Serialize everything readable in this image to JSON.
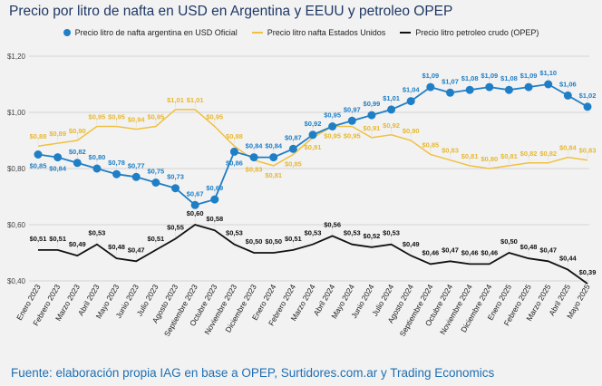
{
  "chart_data": {
    "type": "line",
    "title": "Precio por litro de nafta en USD en Argentina y EEUU y petroleo OPEP",
    "xlabel": "",
    "ylabel": "",
    "ylim": [
      0.4,
      1.2
    ],
    "yticks": [
      "$0,40",
      "$0,60",
      "$0,80",
      "$1,00",
      "$1,20"
    ],
    "grid": true,
    "legend_position": "top",
    "categories": [
      "Enero 2023",
      "Febrero 2023",
      "Marzo 2023",
      "Abril 2023",
      "Mayo 2023",
      "Junio 2023",
      "Julio 2023",
      "Agosto 2023",
      "Septiembre 2023",
      "Octubre 2023",
      "Noviembre 2023",
      "Diciembre 2023",
      "Enero 2024",
      "Febrero 2024",
      "Marzo 2024",
      "Abril 2024",
      "Mayo 2024",
      "Junio 2024",
      "Julio 2024",
      "Agosto 2024",
      "Septiembre 2024",
      "Octubre 2024",
      "Noviembre 2024",
      "Diciembre 2024",
      "Enero 2025",
      "Febrero 2025",
      "Marzo 2025",
      "Abril 2025",
      "Mayo 2025"
    ],
    "series": [
      {
        "name": "Precio litro de nafta argentina en USD Oficial",
        "color": "#1f7fc6",
        "markers": true,
        "values": [
          0.85,
          0.84,
          0.82,
          0.8,
          0.78,
          0.77,
          0.75,
          0.73,
          0.67,
          0.69,
          0.86,
          0.84,
          0.84,
          0.87,
          0.92,
          0.95,
          0.97,
          0.99,
          1.01,
          1.04,
          1.09,
          1.07,
          1.08,
          1.09,
          1.08,
          1.09,
          1.1,
          1.06,
          1.02
        ]
      },
      {
        "name": "Precio litro nafta Estados Unidos",
        "color": "#f0c040",
        "markers": false,
        "values": [
          0.88,
          0.89,
          0.9,
          0.95,
          0.95,
          0.94,
          0.95,
          1.01,
          1.01,
          0.95,
          0.88,
          0.83,
          0.81,
          0.85,
          0.91,
          0.95,
          0.95,
          0.91,
          0.92,
          0.9,
          0.85,
          0.83,
          0.81,
          0.8,
          0.81,
          0.82,
          0.82,
          0.84,
          0.83
        ]
      },
      {
        "name": "Precio litro petroleo crudo (OPEP)",
        "color": "#111111",
        "markers": false,
        "values": [
          0.51,
          0.51,
          0.49,
          0.53,
          0.48,
          0.47,
          0.51,
          0.55,
          0.6,
          0.58,
          0.53,
          0.5,
          0.5,
          0.51,
          0.53,
          0.56,
          0.53,
          0.52,
          0.53,
          0.49,
          0.46,
          0.47,
          0.46,
          0.46,
          0.5,
          0.48,
          0.47,
          0.44,
          0.39
        ]
      }
    ]
  },
  "footer": "Fuente: elaboración propia IAG en base a OPEP, Surtidores.com.ar y Trading Economics"
}
